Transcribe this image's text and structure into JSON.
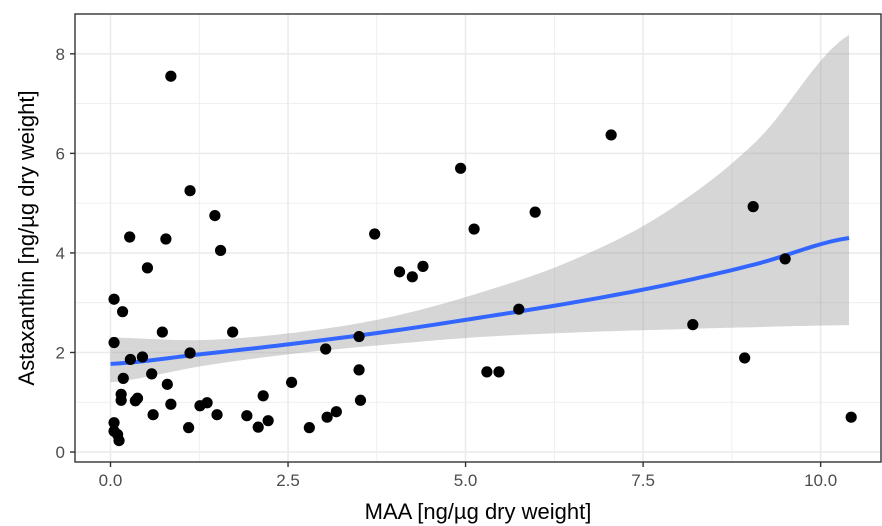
{
  "chart_data": {
    "type": "scatter",
    "title": "",
    "xlabel": "MAA [ng/µg dry weight]",
    "ylabel": "Astaxanthin [ng/µg dry weight]",
    "xlim": [
      -0.5,
      10.85
    ],
    "ylim": [
      -0.2,
      8.8
    ],
    "x_ticks": [
      0.0,
      2.5,
      5.0,
      7.5,
      10.0
    ],
    "x_tick_labels": [
      "0.0",
      "2.5",
      "5.0",
      "7.5",
      "10.0"
    ],
    "y_ticks": [
      0,
      2,
      4,
      6,
      8
    ],
    "y_tick_labels": [
      "0",
      "2",
      "4",
      "6",
      "8"
    ],
    "grid": true,
    "points": [
      {
        "x": 0.85,
        "y": 7.55
      },
      {
        "x": 7.05,
        "y": 6.37
      },
      {
        "x": 4.93,
        "y": 5.7
      },
      {
        "x": 1.12,
        "y": 5.25
      },
      {
        "x": 9.05,
        "y": 4.93
      },
      {
        "x": 5.98,
        "y": 4.82
      },
      {
        "x": 1.47,
        "y": 4.75
      },
      {
        "x": 5.12,
        "y": 4.48
      },
      {
        "x": 3.72,
        "y": 4.38
      },
      {
        "x": 0.27,
        "y": 4.32
      },
      {
        "x": 0.78,
        "y": 4.28
      },
      {
        "x": 1.55,
        "y": 4.05
      },
      {
        "x": 9.5,
        "y": 3.88
      },
      {
        "x": 4.4,
        "y": 3.73
      },
      {
        "x": 0.52,
        "y": 3.7
      },
      {
        "x": 4.07,
        "y": 3.62
      },
      {
        "x": 4.25,
        "y": 3.52
      },
      {
        "x": 0.05,
        "y": 3.07
      },
      {
        "x": 5.75,
        "y": 2.87
      },
      {
        "x": 0.17,
        "y": 2.82
      },
      {
        "x": 8.2,
        "y": 2.56
      },
      {
        "x": 1.72,
        "y": 2.41
      },
      {
        "x": 0.73,
        "y": 2.41
      },
      {
        "x": 3.5,
        "y": 2.32
      },
      {
        "x": 0.05,
        "y": 2.2
      },
      {
        "x": 3.03,
        "y": 2.07
      },
      {
        "x": 1.12,
        "y": 1.99
      },
      {
        "x": 0.45,
        "y": 1.91
      },
      {
        "x": 8.93,
        "y": 1.89
      },
      {
        "x": 0.28,
        "y": 1.86
      },
      {
        "x": 3.5,
        "y": 1.65
      },
      {
        "x": 5.3,
        "y": 1.61
      },
      {
        "x": 5.47,
        "y": 1.61
      },
      {
        "x": 0.58,
        "y": 1.57
      },
      {
        "x": 0.18,
        "y": 1.48
      },
      {
        "x": 2.55,
        "y": 1.4
      },
      {
        "x": 0.8,
        "y": 1.36
      },
      {
        "x": 0.15,
        "y": 1.16
      },
      {
        "x": 2.15,
        "y": 1.13
      },
      {
        "x": 0.38,
        "y": 1.08
      },
      {
        "x": 0.15,
        "y": 1.04
      },
      {
        "x": 0.35,
        "y": 1.03
      },
      {
        "x": 3.52,
        "y": 1.04
      },
      {
        "x": 1.36,
        "y": 0.99
      },
      {
        "x": 0.85,
        "y": 0.96
      },
      {
        "x": 1.26,
        "y": 0.93
      },
      {
        "x": 3.18,
        "y": 0.81
      },
      {
        "x": 0.6,
        "y": 0.75
      },
      {
        "x": 1.5,
        "y": 0.75
      },
      {
        "x": 1.92,
        "y": 0.73
      },
      {
        "x": 3.05,
        "y": 0.7
      },
      {
        "x": 10.43,
        "y": 0.7
      },
      {
        "x": 2.22,
        "y": 0.63
      },
      {
        "x": 0.05,
        "y": 0.59
      },
      {
        "x": 2.8,
        "y": 0.49
      },
      {
        "x": 1.1,
        "y": 0.49
      },
      {
        "x": 2.08,
        "y": 0.5
      },
      {
        "x": 0.05,
        "y": 0.42
      },
      {
        "x": 0.1,
        "y": 0.35
      },
      {
        "x": 0.12,
        "y": 0.23
      }
    ],
    "trend_line": {
      "x": [
        0.0,
        1.3,
        2.6,
        3.9,
        5.2,
        6.5,
        7.8,
        9.1,
        10.4
      ],
      "y": [
        1.77,
        1.97,
        2.18,
        2.42,
        2.7,
        3.0,
        3.35,
        3.78,
        4.3
      ],
      "ci_lower": [
        1.4,
        1.73,
        1.98,
        2.16,
        2.31,
        2.4,
        2.46,
        2.51,
        2.55
      ],
      "ci_upper": [
        2.3,
        2.25,
        2.4,
        2.7,
        3.2,
        3.85,
        4.8,
        6.25,
        8.38
      ]
    },
    "colors": {
      "points": "#000000",
      "line": "#3366ff",
      "ribbon": "#999999",
      "grid": "#ebebeb",
      "frame": "#333333",
      "tick_text": "#4d4d4d"
    }
  }
}
